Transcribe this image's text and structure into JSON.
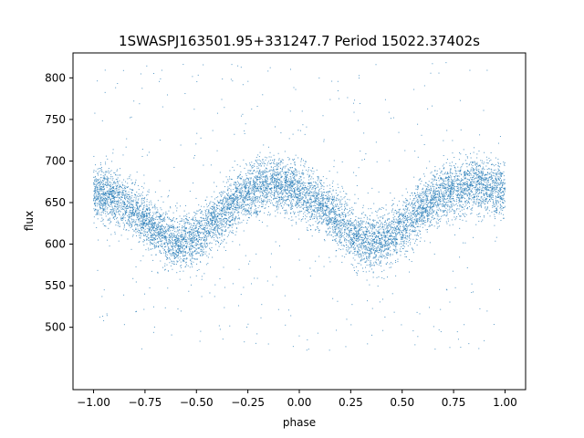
{
  "chart_data": {
    "type": "scatter",
    "title": "1SWASPJ163501.95+331247.7 Period 15022.37402s",
    "xlabel": "phase",
    "ylabel": "flux",
    "xlim": [
      -1.1,
      1.1
    ],
    "ylim": [
      425,
      830
    ],
    "x_ticks": [
      -1.0,
      -0.75,
      -0.5,
      -0.25,
      0.0,
      0.25,
      0.5,
      0.75,
      1.0
    ],
    "x_tick_labels": [
      "−1.00",
      "−0.75",
      "−0.50",
      "−0.25",
      "0.00",
      "0.25",
      "0.50",
      "0.75",
      "1.00"
    ],
    "y_ticks": [
      500,
      550,
      600,
      650,
      700,
      750,
      800
    ],
    "y_tick_labels": [
      "500",
      "550",
      "600",
      "650",
      "700",
      "750",
      "800"
    ],
    "grid": false,
    "point_color": "#1f77b4",
    "phase_range": [
      -1.0,
      1.0
    ],
    "curve": {
      "phase": [
        -1.0,
        -0.9,
        -0.8,
        -0.7,
        -0.6,
        -0.5,
        -0.4,
        -0.3,
        -0.2,
        -0.1,
        0.0,
        0.1,
        0.2,
        0.3,
        0.4,
        0.5,
        0.6,
        0.7,
        0.8,
        0.9,
        1.0
      ],
      "flux": [
        662,
        656,
        640,
        618,
        602,
        606,
        630,
        652,
        668,
        672,
        664,
        648,
        626,
        606,
        602,
        620,
        644,
        662,
        670,
        670,
        664
      ]
    },
    "scatter_sigma": 16,
    "outlier_range": [
      470,
      820
    ]
  }
}
